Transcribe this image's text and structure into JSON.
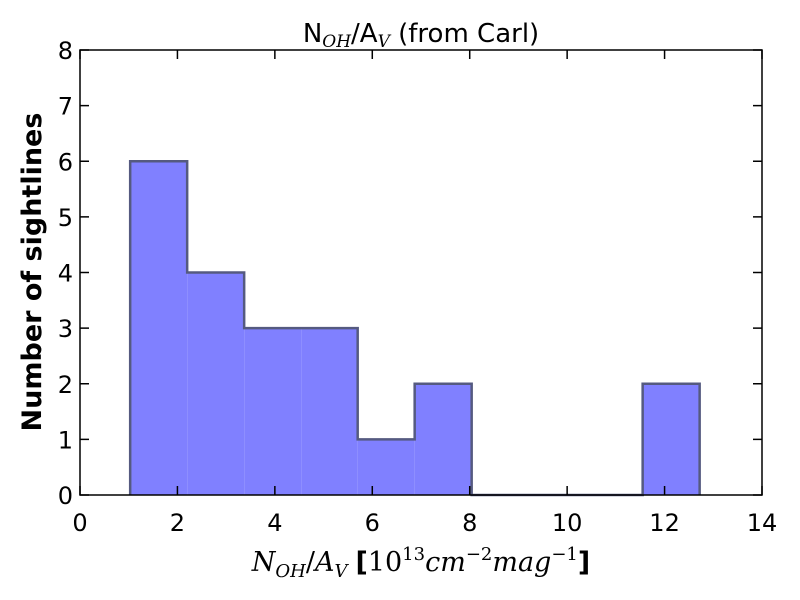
{
  "chart_data": {
    "type": "bar",
    "title": {
      "main": "N",
      "main_sub": "OH",
      "mid": "/A",
      "mid_sub": "V",
      "tail": " (from Carl)"
    },
    "xlabel": {
      "var1": "N",
      "var1_sub": "OH",
      "slash": "/",
      "var2": "A",
      "var2_sub": "V",
      "open_bracket": "[",
      "base": "10",
      "base_exp": "13",
      "unit1": "cm",
      "unit1_exp": "−2",
      "unit2": "mag",
      "unit2_exp": "−1",
      "close_bracket": "]"
    },
    "ylabel": "Number of sightlines",
    "xlim": [
      0,
      14
    ],
    "ylim": [
      0,
      8
    ],
    "x_ticks": [
      0,
      2,
      4,
      6,
      8,
      10,
      12,
      14
    ],
    "y_ticks": [
      0,
      1,
      2,
      3,
      4,
      5,
      6,
      7,
      8
    ],
    "x_tick_labels": [
      "0",
      "2",
      "4",
      "6",
      "8",
      "10",
      "12",
      "14"
    ],
    "y_tick_labels": [
      "0",
      "1",
      "2",
      "3",
      "4",
      "5",
      "6",
      "7",
      "8"
    ],
    "bin_edges": [
      1.03,
      2.2,
      3.37,
      4.54,
      5.7,
      6.87,
      8.04,
      9.21,
      10.38,
      11.55,
      12.72
    ],
    "counts": [
      6,
      4,
      3,
      3,
      1,
      2,
      0,
      0,
      0,
      2
    ],
    "grid": false,
    "colors": {
      "fill": "#8080ff",
      "edge": "#555a80",
      "axes": "#000000"
    }
  }
}
